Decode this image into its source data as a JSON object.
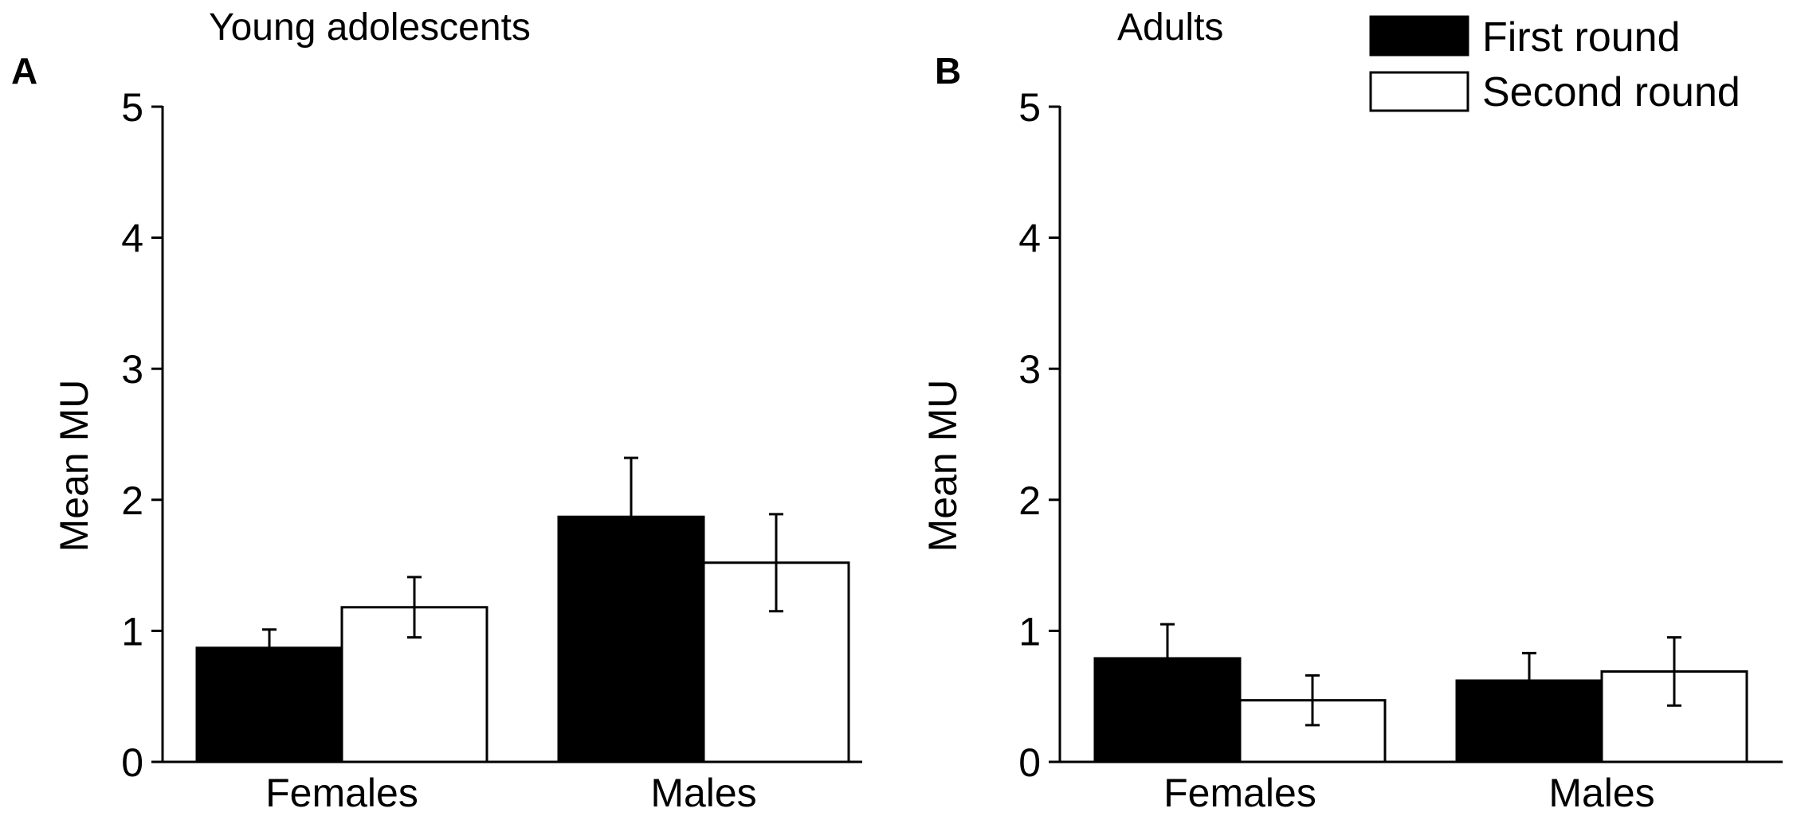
{
  "chart_data": [
    {
      "type": "bar",
      "panel": "A",
      "title": "Young adolescents",
      "ylabel": "Mean MU",
      "xlabel": "",
      "ylim": [
        0,
        5
      ],
      "yticks": [
        "0",
        "1",
        "2",
        "3",
        "4",
        "5"
      ],
      "categories": [
        "Females",
        "Males"
      ],
      "series": [
        {
          "name": "First round",
          "values": [
            0.87,
            1.87
          ],
          "errors": [
            0.14,
            0.45
          ],
          "color": "#000000"
        },
        {
          "name": "Second round",
          "values": [
            1.18,
            1.52
          ],
          "errors": [
            0.23,
            0.37
          ],
          "color": "#ffffff"
        }
      ]
    },
    {
      "type": "bar",
      "panel": "B",
      "title": "Adults",
      "ylabel": "Mean MU",
      "xlabel": "",
      "ylim": [
        0,
        5
      ],
      "yticks": [
        "0",
        "1",
        "2",
        "3",
        "4",
        "5"
      ],
      "categories": [
        "Females",
        "Males"
      ],
      "series": [
        {
          "name": "First round",
          "values": [
            0.79,
            0.62
          ],
          "errors": [
            0.26,
            0.21
          ],
          "color": "#000000"
        },
        {
          "name": "Second round",
          "values": [
            0.47,
            0.69
          ],
          "errors": [
            0.19,
            0.26
          ],
          "color": "#ffffff"
        }
      ]
    }
  ],
  "legend": {
    "placement": "top-right",
    "entries": [
      {
        "label": "First round",
        "color": "#000000"
      },
      {
        "label": "Second round",
        "color": "#ffffff"
      }
    ]
  }
}
